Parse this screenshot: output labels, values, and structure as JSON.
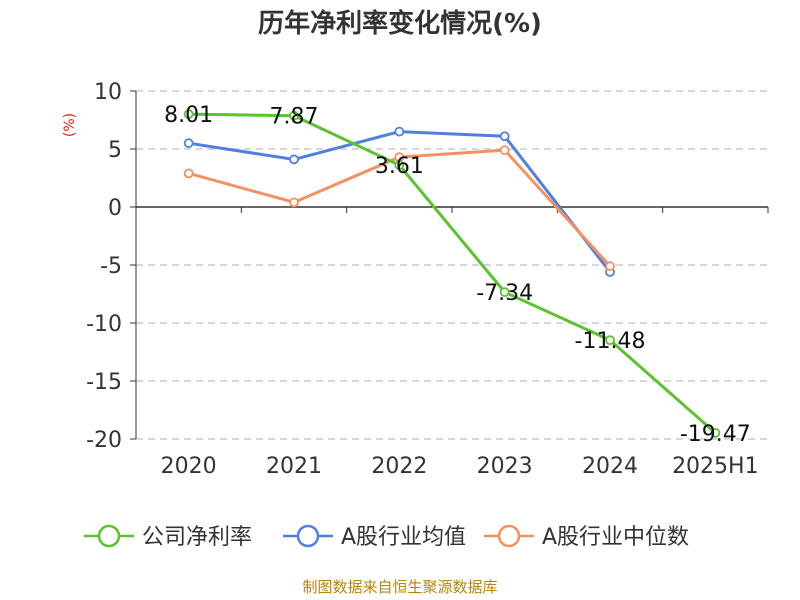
{
  "chart_data": {
    "type": "line",
    "title": "历年净利率变化情况(%)",
    "ylabel": "(%)",
    "categories": [
      "2020",
      "2021",
      "2022",
      "2023",
      "2024",
      "2025H1"
    ],
    "ylim": [
      -20,
      10
    ],
    "yticks": [
      10,
      5,
      0,
      -5,
      -10,
      -15,
      -20
    ],
    "grid": true,
    "legend_position": "bottom",
    "series": [
      {
        "name": "公司净利率",
        "color": "#5cc22f",
        "values": [
          8.01,
          7.87,
          3.61,
          -7.34,
          -11.48,
          -19.47
        ],
        "labels": [
          "8.01",
          "7.87",
          "3.61",
          "-7.34",
          "-11.48",
          "-19.47"
        ]
      },
      {
        "name": "A股行业均值",
        "color": "#4f7fe0",
        "values": [
          5.5,
          4.1,
          6.5,
          6.1,
          -5.6,
          null
        ]
      },
      {
        "name": "A股行业中位数",
        "color": "#f59160",
        "values": [
          2.9,
          0.4,
          4.3,
          4.9,
          -5.1,
          null
        ]
      }
    ]
  },
  "source": "制图数据来自恒生聚源数据库"
}
